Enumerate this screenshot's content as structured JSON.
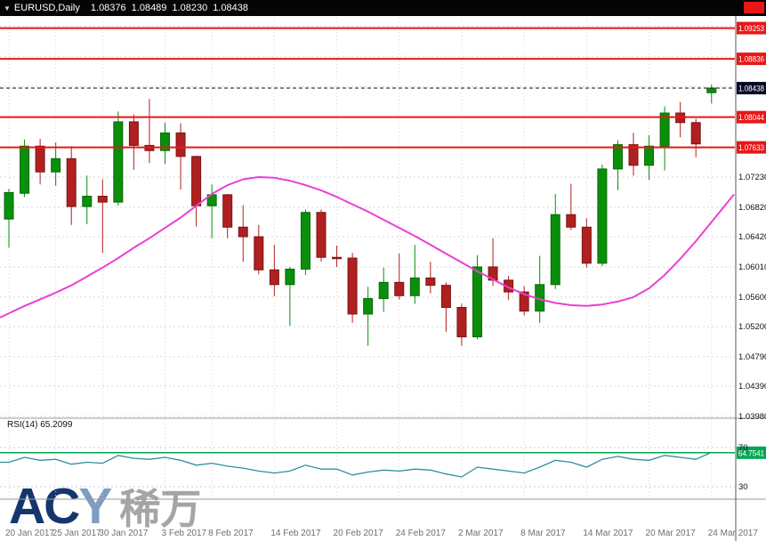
{
  "header": {
    "marker": "▼",
    "symbol": "EURUSD,Daily",
    "open": "1.08376",
    "high": "1.08489",
    "low": "1.08230",
    "close": "1.08438"
  },
  "watermark": {
    "ac": "AC",
    "y": "Y",
    "cn": "稀万"
  },
  "colors": {
    "bull": "#0a8f0a",
    "bull_edge": "#066a06",
    "bear": "#b02020",
    "bear_edge": "#7c1414",
    "ma": "#ea3fd4",
    "rsi": "#2f8e9e",
    "hline": "#e81717",
    "current": "#0a0a28",
    "rsi_hline": "#00a651",
    "grid": "#d6d6d6",
    "axis_text": "#111111",
    "time_text": "#6e6e6e"
  },
  "chart_data": {
    "type": "candlestick",
    "title": "EURUSD,Daily",
    "symbol": "EURUSD",
    "timeframe": "Daily",
    "ylim": [
      1.0396,
      1.0942
    ],
    "current_price": 1.08438,
    "dates": [
      "2017-01-20",
      "2017-01-23",
      "2017-01-24",
      "2017-01-25",
      "2017-01-26",
      "2017-01-27",
      "2017-01-30",
      "2017-01-31",
      "2017-02-01",
      "2017-02-02",
      "2017-02-03",
      "2017-02-06",
      "2017-02-07",
      "2017-02-08",
      "2017-02-09",
      "2017-02-10",
      "2017-02-13",
      "2017-02-14",
      "2017-02-15",
      "2017-02-16",
      "2017-02-17",
      "2017-02-20",
      "2017-02-21",
      "2017-02-22",
      "2017-02-23",
      "2017-02-24",
      "2017-02-27",
      "2017-02-28",
      "2017-03-01",
      "2017-03-02",
      "2017-03-03",
      "2017-03-06",
      "2017-03-07",
      "2017-03-08",
      "2017-03-09",
      "2017-03-10",
      "2017-03-13",
      "2017-03-14",
      "2017-03-15",
      "2017-03-16",
      "2017-03-17",
      "2017-03-20",
      "2017-03-21",
      "2017-03-22",
      "2017-03-23",
      "2017-03-24"
    ],
    "ohlc": [
      [
        1.0666,
        1.0707,
        1.0627,
        1.0702
      ],
      [
        1.0701,
        1.0774,
        1.0696,
        1.0765
      ],
      [
        1.0765,
        1.0775,
        1.0713,
        1.073
      ],
      [
        1.073,
        1.077,
        1.0711,
        1.0748
      ],
      [
        1.0748,
        1.0765,
        1.0658,
        1.0683
      ],
      [
        1.0683,
        1.0725,
        1.0659,
        1.0697
      ],
      [
        1.0697,
        1.072,
        1.062,
        1.0689
      ],
      [
        1.0689,
        1.0812,
        1.0684,
        1.0798
      ],
      [
        1.0798,
        1.0808,
        1.0733,
        1.0766
      ],
      [
        1.0766,
        1.0829,
        1.0742,
        1.0759
      ],
      [
        1.0759,
        1.0797,
        1.0741,
        1.0783
      ],
      [
        1.0783,
        1.0796,
        1.0706,
        1.0751
      ],
      [
        1.0751,
        1.0752,
        1.0656,
        1.0684
      ],
      [
        1.0684,
        1.0713,
        1.064,
        1.0699
      ],
      [
        1.0699,
        1.07,
        1.064,
        1.0655
      ],
      [
        1.0655,
        1.0685,
        1.0608,
        1.0642
      ],
      [
        1.0642,
        1.0658,
        1.0591,
        1.0597
      ],
      [
        1.0597,
        1.0631,
        1.0561,
        1.0577
      ],
      [
        1.0577,
        1.0601,
        1.0521,
        1.0598
      ],
      [
        1.0598,
        1.0679,
        1.059,
        1.0675
      ],
      [
        1.0675,
        1.0679,
        1.0608,
        1.0614
      ],
      [
        1.0614,
        1.063,
        1.0601,
        1.0613
      ],
      [
        1.0613,
        1.062,
        1.0525,
        1.0537
      ],
      [
        1.0537,
        1.0574,
        1.0494,
        1.0558
      ],
      [
        1.0558,
        1.06,
        1.054,
        1.058
      ],
      [
        1.058,
        1.0619,
        1.0557,
        1.0562
      ],
      [
        1.0562,
        1.0631,
        1.0551,
        1.0586
      ],
      [
        1.0586,
        1.0608,
        1.0565,
        1.0576
      ],
      [
        1.0576,
        1.058,
        1.0513,
        1.0546
      ],
      [
        1.0546,
        1.0551,
        1.0494,
        1.0506
      ],
      [
        1.0506,
        1.0617,
        1.0503,
        1.0601
      ],
      [
        1.0601,
        1.064,
        1.0575,
        1.0583
      ],
      [
        1.0583,
        1.0589,
        1.0556,
        1.0567
      ],
      [
        1.0567,
        1.0575,
        1.0535,
        1.0541
      ],
      [
        1.0541,
        1.0616,
        1.0525,
        1.0577
      ],
      [
        1.0577,
        1.07,
        1.0571,
        1.0672
      ],
      [
        1.0672,
        1.0714,
        1.0651,
        1.0655
      ],
      [
        1.0655,
        1.0667,
        1.06,
        1.0606
      ],
      [
        1.0606,
        1.074,
        1.0602,
        1.0734
      ],
      [
        1.0734,
        1.0773,
        1.0705,
        1.0767
      ],
      [
        1.0767,
        1.0783,
        1.0725,
        1.0739
      ],
      [
        1.0739,
        1.078,
        1.0719,
        1.0765
      ],
      [
        1.0765,
        1.0819,
        1.0732,
        1.081
      ],
      [
        1.081,
        1.0825,
        1.0777,
        1.0797
      ],
      [
        1.0797,
        1.0802,
        1.075,
        1.0768
      ],
      [
        1.08376,
        1.08489,
        1.0823,
        1.08438
      ]
    ],
    "ma": {
      "name": "moving-average",
      "values": [
        1.0538,
        1.0548,
        1.0557,
        1.0566,
        1.0576,
        1.0588,
        1.06,
        1.0613,
        1.0627,
        1.064,
        1.0654,
        1.0668,
        1.0684,
        1.07,
        1.0712,
        1.072,
        1.0723,
        1.0722,
        1.0718,
        1.0712,
        1.0705,
        1.0696,
        1.0686,
        1.0676,
        1.0665,
        1.0654,
        1.0643,
        1.0631,
        1.0619,
        1.0607,
        1.0595,
        1.0584,
        1.0573,
        1.0564,
        1.0557,
        1.0552,
        1.0549,
        1.0548,
        1.055,
        1.0554,
        1.056,
        1.0572,
        1.059,
        1.0612,
        1.0636,
        1.0662
      ]
    },
    "hlines": [
      {
        "price": 1.09253
      },
      {
        "price": 1.08836
      },
      {
        "price": 1.08044
      },
      {
        "price": 1.07633
      }
    ],
    "price_axis_labels": [
      1.0723,
      1.0682,
      1.0642,
      1.0601,
      1.056,
      1.052,
      1.0479,
      1.0439,
      1.0398
    ],
    "x_axis_labels": [
      {
        "label": "20 Jan 2017",
        "index": 0
      },
      {
        "label": "25 Jan 2017",
        "index": 3
      },
      {
        "label": "30 Jan 2017",
        "index": 6
      },
      {
        "label": "3 Feb 2017",
        "index": 10
      },
      {
        "label": "8 Feb 2017",
        "index": 13
      },
      {
        "label": "14 Feb 2017",
        "index": 17
      },
      {
        "label": "20 Feb 2017",
        "index": 21
      },
      {
        "label": "24 Feb 2017",
        "index": 25
      },
      {
        "label": "2 Mar 2017",
        "index": 29
      },
      {
        "label": "8 Mar 2017",
        "index": 33
      },
      {
        "label": "14 Mar 2017",
        "index": 37
      },
      {
        "label": "20 Mar 2017",
        "index": 41
      },
      {
        "label": "24 Mar 2017",
        "index": 45
      }
    ],
    "rsi": {
      "label": "RSI(14) 65.2099",
      "period": 14,
      "current": 65.2099,
      "levels": [
        70,
        30
      ],
      "hline": 64.7541,
      "values": [
        55,
        60,
        57,
        58,
        53,
        55,
        54,
        62,
        59,
        58,
        60,
        57,
        52,
        54,
        51,
        49,
        46,
        44,
        46,
        52,
        48,
        48,
        42,
        45,
        47,
        46,
        48,
        47,
        43,
        40,
        50,
        48,
        46,
        44,
        50,
        57,
        55,
        50,
        58,
        61,
        58,
        57,
        62,
        60,
        58,
        65.2099
      ]
    }
  }
}
